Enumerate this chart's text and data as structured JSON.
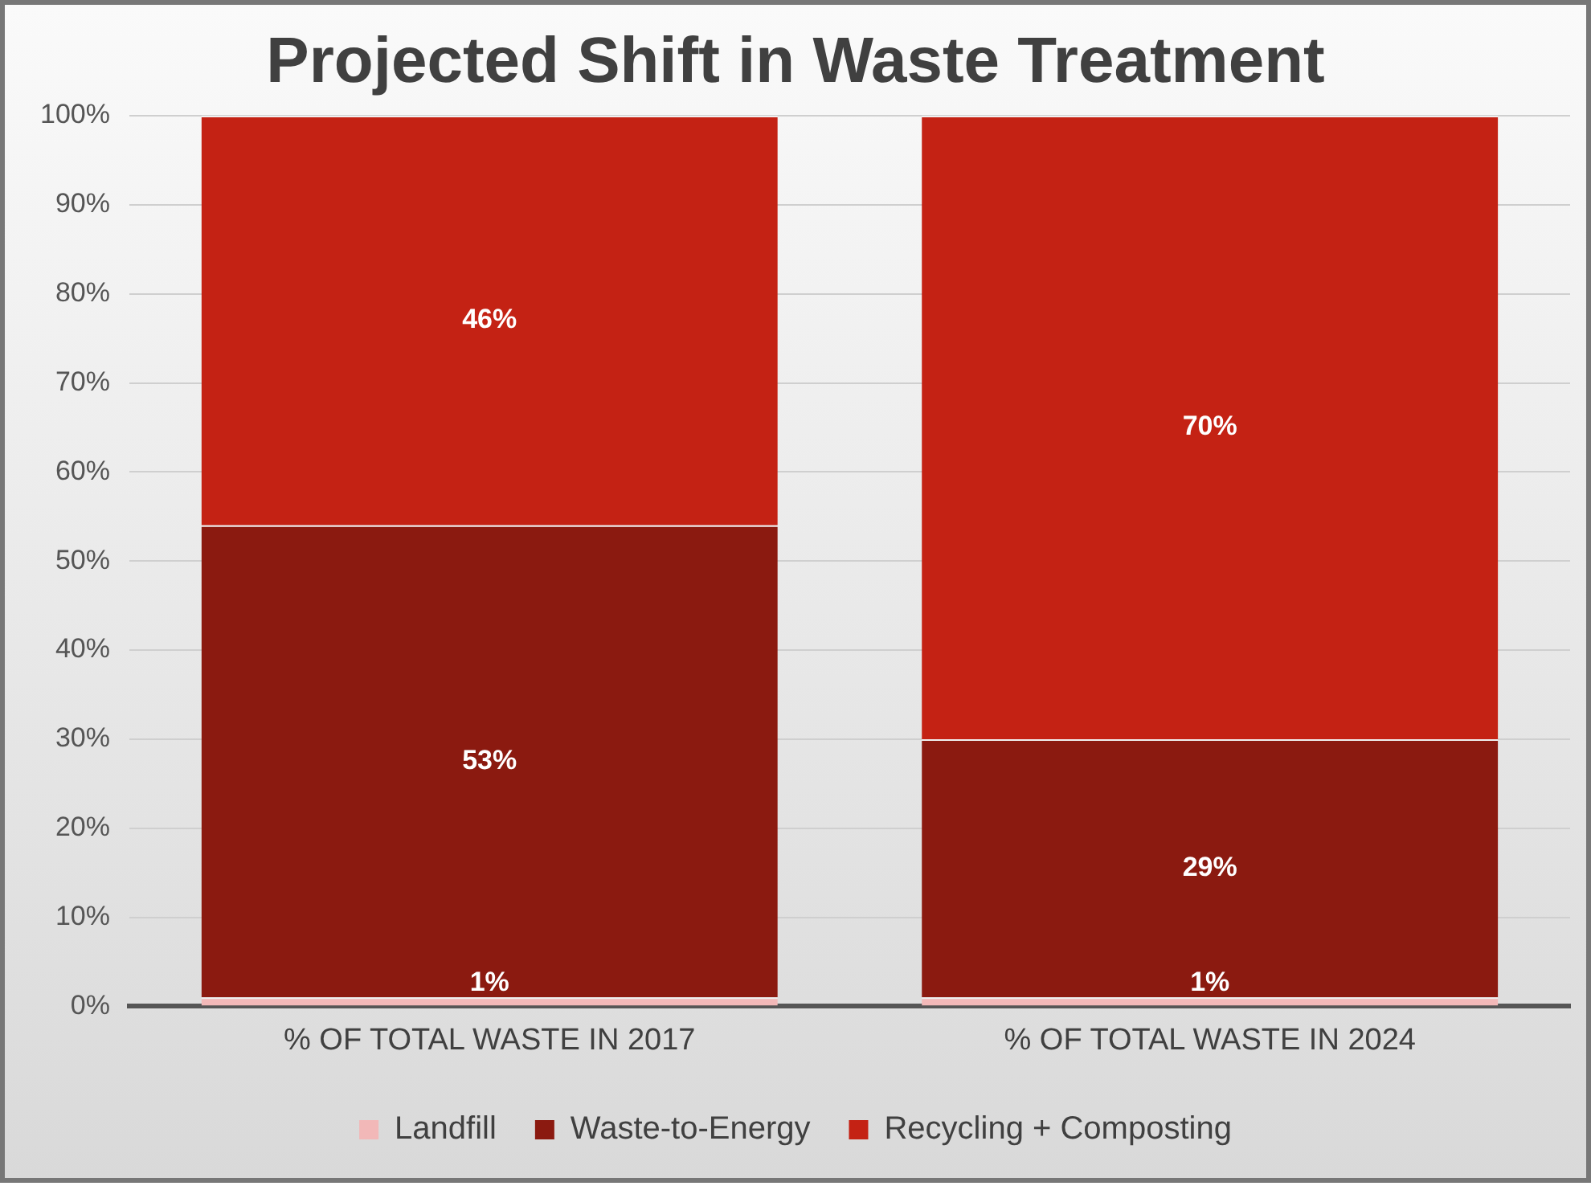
{
  "chart_data": {
    "type": "bar",
    "title": "Projected Shift in Waste Treatment",
    "categories": [
      "% OF TOTAL WASTE IN 2017",
      "% OF TOTAL WASTE IN 2024"
    ],
    "stacked": true,
    "series": [
      {
        "name": "Landfill",
        "color": "#f2b8b8",
        "values": [
          1,
          1
        ]
      },
      {
        "name": "Waste-to-Energy",
        "color": "#8b1a10",
        "values": [
          53,
          29
        ]
      },
      {
        "name": "Recycling + Composting",
        "color": "#c42214",
        "values": [
          46,
          70
        ]
      }
    ],
    "ylim": [
      0,
      100
    ],
    "yticks": [
      {
        "value": 0,
        "label": "0%"
      },
      {
        "value": 10,
        "label": "10%"
      },
      {
        "value": 20,
        "label": "20%"
      },
      {
        "value": 30,
        "label": "30%"
      },
      {
        "value": 40,
        "label": "40%"
      },
      {
        "value": 50,
        "label": "50%"
      },
      {
        "value": 60,
        "label": "60%"
      },
      {
        "value": 70,
        "label": "70%"
      },
      {
        "value": 80,
        "label": "80%"
      },
      {
        "value": 90,
        "label": "90%"
      },
      {
        "value": 100,
        "label": "100%"
      }
    ],
    "grid": "y",
    "legend": "bottom",
    "value_labels": [
      [
        "1%",
        "1%"
      ],
      [
        "53%",
        "29%"
      ],
      [
        "46%",
        "70%"
      ]
    ]
  }
}
